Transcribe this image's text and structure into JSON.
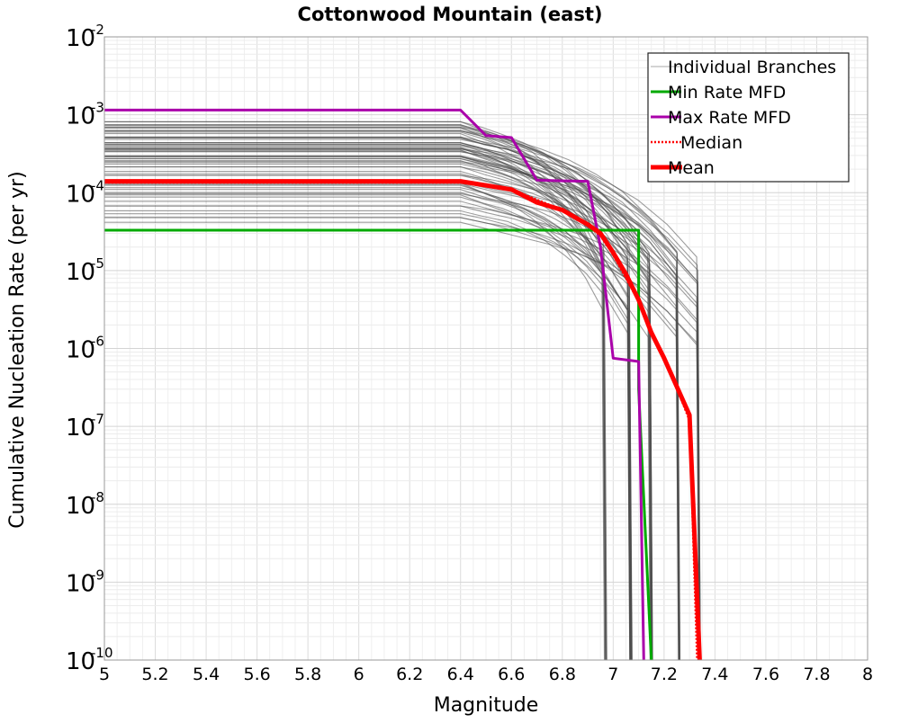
{
  "chart_data": {
    "type": "line",
    "title": "Cottonwood Mountain (east)",
    "xlabel": "Magnitude",
    "ylabel": "Cumulative Nucleation Rate (per yr)",
    "xlim": [
      5,
      8
    ],
    "ylim_log10": [
      -10,
      -2
    ],
    "y_scale": "log",
    "grid": true,
    "legend_position": "top-right",
    "x_ticks": [
      "5",
      "5.2",
      "5.4",
      "5.6",
      "5.8",
      "6",
      "6.2",
      "6.4",
      "6.6",
      "6.8",
      "7",
      "7.2",
      "7.4",
      "7.6",
      "7.8",
      "8"
    ],
    "x_tick_values": [
      5,
      5.2,
      5.4,
      5.6,
      5.8,
      6,
      6.2,
      6.4,
      6.6,
      6.8,
      7,
      7.2,
      7.4,
      7.6,
      7.8,
      8
    ],
    "y_ticks": [
      {
        "exp": -2,
        "base": "10",
        "sup": "-2"
      },
      {
        "exp": -3,
        "base": "10",
        "sup": "-3"
      },
      {
        "exp": -4,
        "base": "10",
        "sup": "-4"
      },
      {
        "exp": -5,
        "base": "10",
        "sup": "-5"
      },
      {
        "exp": -6,
        "base": "10",
        "sup": "-6"
      },
      {
        "exp": -7,
        "base": "10",
        "sup": "-7"
      },
      {
        "exp": -8,
        "base": "10",
        "sup": "-8"
      },
      {
        "exp": -9,
        "base": "10",
        "sup": "-9"
      },
      {
        "exp": -10,
        "base": "10",
        "sup": "-10"
      }
    ],
    "legend": [
      {
        "label": "Individual Branches",
        "color": "#aaaaaa",
        "style": "thin"
      },
      {
        "label": "Min Rate MFD",
        "color": "#00aa00",
        "style": "solid"
      },
      {
        "label": "Max Rate MFD",
        "color": "#aa00aa",
        "style": "solid"
      },
      {
        "label": "Median",
        "color": "#ff0000",
        "style": "dotted"
      },
      {
        "label": "Mean",
        "color": "#ff0000",
        "style": "thick"
      }
    ],
    "branches": {
      "color": "#4d4d4d",
      "count": 70,
      "rate_range": [
        3.5e-05,
        0.0009
      ],
      "description": "individual logic-tree branch MFDs, flat to M6.4 then dropping to floor near M6.95-7.35"
    },
    "series": [
      {
        "name": "Min Rate MFD",
        "color": "#00aa00",
        "x": [
          5,
          7.1,
          7.1,
          7.15
        ],
        "y": [
          3.3e-05,
          3.3e-05,
          3e-07,
          1e-10
        ]
      },
      {
        "name": "Max Rate MFD",
        "color": "#aa00aa",
        "x": [
          5,
          6.4,
          6.5,
          6.6,
          6.7,
          6.8,
          6.9,
          6.95,
          7.0,
          7.1,
          7.12
        ],
        "y": [
          0.00115,
          0.00115,
          0.00054,
          0.00051,
          0.000145,
          0.000142,
          0.00014,
          2e-05,
          7.5e-07,
          6.8e-07,
          1e-10
        ]
      },
      {
        "name": "Median",
        "color": "#ff0000",
        "x": [
          5,
          6.4,
          6.6,
          6.8,
          6.9,
          6.95,
          7.0,
          7.05,
          7.1,
          7.15,
          7.2,
          7.3,
          7.33
        ],
        "y": [
          0.000135,
          0.000135,
          0.00011,
          6e-05,
          3.8e-05,
          2.8e-05,
          1.6e-05,
          8e-06,
          4e-06,
          1.5e-06,
          8e-07,
          1.2e-07,
          1e-10
        ]
      },
      {
        "name": "Mean",
        "color": "#ff0000",
        "x": [
          5,
          6.4,
          6.6,
          6.7,
          6.8,
          6.9,
          6.95,
          7.0,
          7.05,
          7.1,
          7.15,
          7.2,
          7.3,
          7.34
        ],
        "y": [
          0.00014,
          0.00014,
          0.00011,
          7.5e-05,
          6e-05,
          3.9e-05,
          3e-05,
          1.7e-05,
          9e-06,
          4.2e-06,
          1.6e-06,
          7.5e-07,
          1.4e-07,
          1e-10
        ]
      }
    ]
  }
}
